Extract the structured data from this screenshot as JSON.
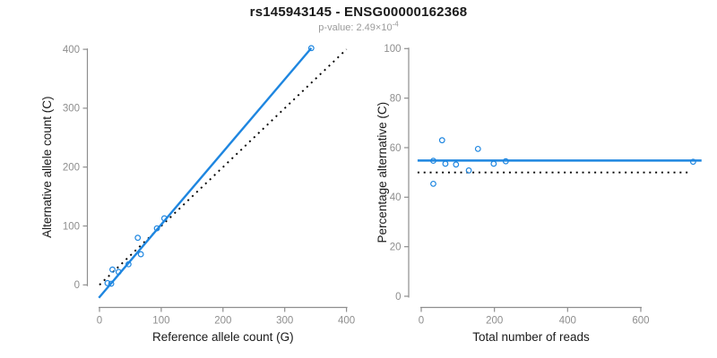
{
  "title": "rs145943145 - ENSG00000162368",
  "subtitle": {
    "text": "p-value: 2.49×10",
    "exponent": "-4"
  },
  "colors": {
    "accent_blue": "#1E86E0",
    "identity_black": "#000000",
    "axis_gray": "#8e8e8e",
    "tick_label_gray": "#8e8e8e",
    "axis_title_black": "#1a1a1a",
    "subtitle_gray": "#9b9b9b",
    "background": "#ffffff"
  },
  "chart_data": [
    {
      "panel": "ref-vs-alt-counts",
      "type": "scatter",
      "xlabel": "Reference allele count (G)",
      "ylabel": "Alternative allele count (C)",
      "xlim": [
        0,
        400
      ],
      "ylim": [
        0,
        400
      ],
      "xticks": [
        0,
        100,
        200,
        300,
        400
      ],
      "yticks": [
        0,
        100,
        200,
        300,
        400
      ],
      "grid": false,
      "legend": "none",
      "marker": "open-circle",
      "points": [
        [
          13,
          3
        ],
        [
          19,
          2
        ],
        [
          21,
          26
        ],
        [
          31,
          22
        ],
        [
          47,
          35
        ],
        [
          62,
          80
        ],
        [
          67,
          52
        ],
        [
          93,
          96
        ],
        [
          105,
          113
        ],
        [
          343,
          402
        ]
      ],
      "lines": [
        {
          "name": "identity-line",
          "style": "dotted",
          "color": "#000000",
          "from": [
            0,
            0
          ],
          "to": [
            400,
            400
          ]
        },
        {
          "name": "fit-line",
          "style": "solid",
          "color": "#1E86E0",
          "from": [
            -1,
            -22
          ],
          "to": [
            343,
            402
          ]
        }
      ]
    },
    {
      "panel": "pct-alternative-vs-total-reads",
      "type": "scatter",
      "xlabel": "Total number of reads",
      "ylabel": "Percentage alternative (C)",
      "xlim": [
        0,
        770
      ],
      "ylim": [
        0,
        100
      ],
      "xticks": [
        0,
        200,
        400,
        600
      ],
      "yticks": [
        0,
        20,
        40,
        60,
        80,
        100
      ],
      "grid": false,
      "legend": "none",
      "marker": "open-circle",
      "points": [
        [
          33,
          54.7
        ],
        [
          33,
          45.4
        ],
        [
          57,
          63.0
        ],
        [
          66,
          53.5
        ],
        [
          95,
          53.2
        ],
        [
          130,
          50.8
        ],
        [
          155,
          59.5
        ],
        [
          198,
          53.5
        ],
        [
          231,
          54.5
        ],
        [
          743,
          54.3
        ]
      ],
      "lines": [
        {
          "name": "null-50pct-line",
          "style": "dotted",
          "color": "#000000",
          "from": [
            -10,
            50
          ],
          "to": [
            734,
            50
          ]
        },
        {
          "name": "mean-pct-line",
          "style": "solid",
          "color": "#1E86E0",
          "from": [
            -10,
            54.8
          ],
          "to": [
            766,
            54.8
          ]
        }
      ]
    }
  ]
}
